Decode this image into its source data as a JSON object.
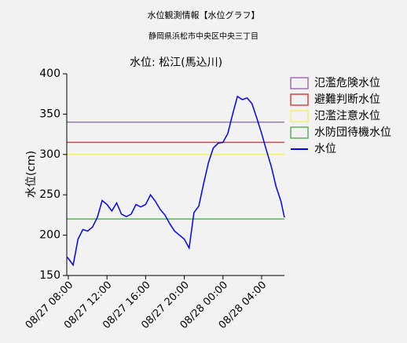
{
  "header": {
    "title": "水位観測情報【水位グラフ】",
    "location": "静岡県浜松市中央区中央三丁目"
  },
  "chart_data": {
    "type": "line",
    "title": "水位: 松江(馬込川)",
    "y_label": "水位(cm)",
    "x": [
      7.84,
      8,
      8.5,
      9,
      9.5,
      10,
      10.5,
      11,
      11.5,
      12,
      12.5,
      13,
      13.5,
      14,
      14.5,
      15,
      15.5,
      16,
      16.5,
      17,
      17.5,
      18,
      18.5,
      19,
      19.5,
      20,
      20.5,
      21,
      21.5,
      22,
      22.5,
      23,
      23.5,
      24,
      24.5,
      25,
      25.5,
      26,
      26.5,
      27,
      27.5,
      28,
      28.5,
      29,
      29.5,
      30,
      30.36
    ],
    "series": [
      {
        "name": "水位",
        "color": "#0000ff",
        "values": [
          173,
          171,
          163,
          195,
          207,
          205,
          210,
          222,
          243,
          238,
          230,
          240,
          226,
          223,
          226,
          238,
          235,
          238,
          250,
          242,
          232,
          225,
          214,
          205,
          200,
          195,
          184,
          228,
          236,
          264,
          290,
          308,
          314,
          315,
          326,
          350,
          372,
          368,
          370,
          363,
          345,
          326,
          305,
          285,
          260,
          242,
          222
        ]
      }
    ],
    "reference_lines": [
      {
        "name": "氾濫危険水位",
        "value": 340,
        "color": "#a070b8"
      },
      {
        "name": "避難判断水位",
        "value": 315,
        "color": "#e04040"
      },
      {
        "name": "氾濫注意水位",
        "value": 300,
        "color": "#f0f070"
      },
      {
        "name": "水防団待機水位",
        "value": 220,
        "color": "#60b060"
      }
    ],
    "xlim": [
      7.84,
      30.36
    ],
    "xticks": [
      {
        "value": 8,
        "label": "08/27 08:00"
      },
      {
        "value": 12,
        "label": "08/27 12:00"
      },
      {
        "value": 16,
        "label": "08/27 16:00"
      },
      {
        "value": 20,
        "label": "08/27 20:00"
      },
      {
        "value": 24,
        "label": "08/28 00:00"
      },
      {
        "value": 28,
        "label": "08/28 04:00"
      }
    ],
    "ylim": [
      150,
      400
    ],
    "yticks": [
      150,
      200,
      250,
      300,
      350,
      400
    ],
    "grid": false,
    "legend": "right"
  }
}
